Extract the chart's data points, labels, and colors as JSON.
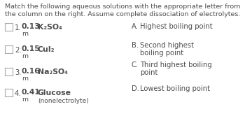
{
  "title_line1": "Match the following aqueous solutions with the appropriate letter from",
  "title_line2": "the column on the right. Assume complete dissociation of electrolytes.",
  "bg_color": "#ffffff",
  "text_color": "#4d4d4d",
  "left_items": [
    {
      "num": "1.",
      "molality": "0.13",
      "formula": "K₂SO₄"
    },
    {
      "num": "2.",
      "molality": "0.15",
      "formula": "CuI₂"
    },
    {
      "num": "3.",
      "molality": "0.16",
      "formula": "Na₂SO₄"
    },
    {
      "num": "4.",
      "molality": "0.41",
      "formula": "Glucose",
      "sub": "(nonelectrolyte)"
    }
  ],
  "right_items": [
    {
      "letter": "A.",
      "line1": "Highest boiling point",
      "line2": null
    },
    {
      "letter": "B.",
      "line1": "Second highest",
      "line2": "boiling point"
    },
    {
      "letter": "C.",
      "line1": "Third highest boiling",
      "line2": "point"
    },
    {
      "letter": "D.",
      "line1": "Lowest boiling point",
      "line2": null
    }
  ],
  "box_color": "#aaaaaa",
  "title_fontsize": 6.8,
  "item_fontsize": 7.2,
  "molality_fontsize": 7.8,
  "formula_fontsize": 7.8,
  "sub_fontsize": 6.5,
  "fig_width": 3.5,
  "fig_height": 1.66,
  "dpi": 100
}
